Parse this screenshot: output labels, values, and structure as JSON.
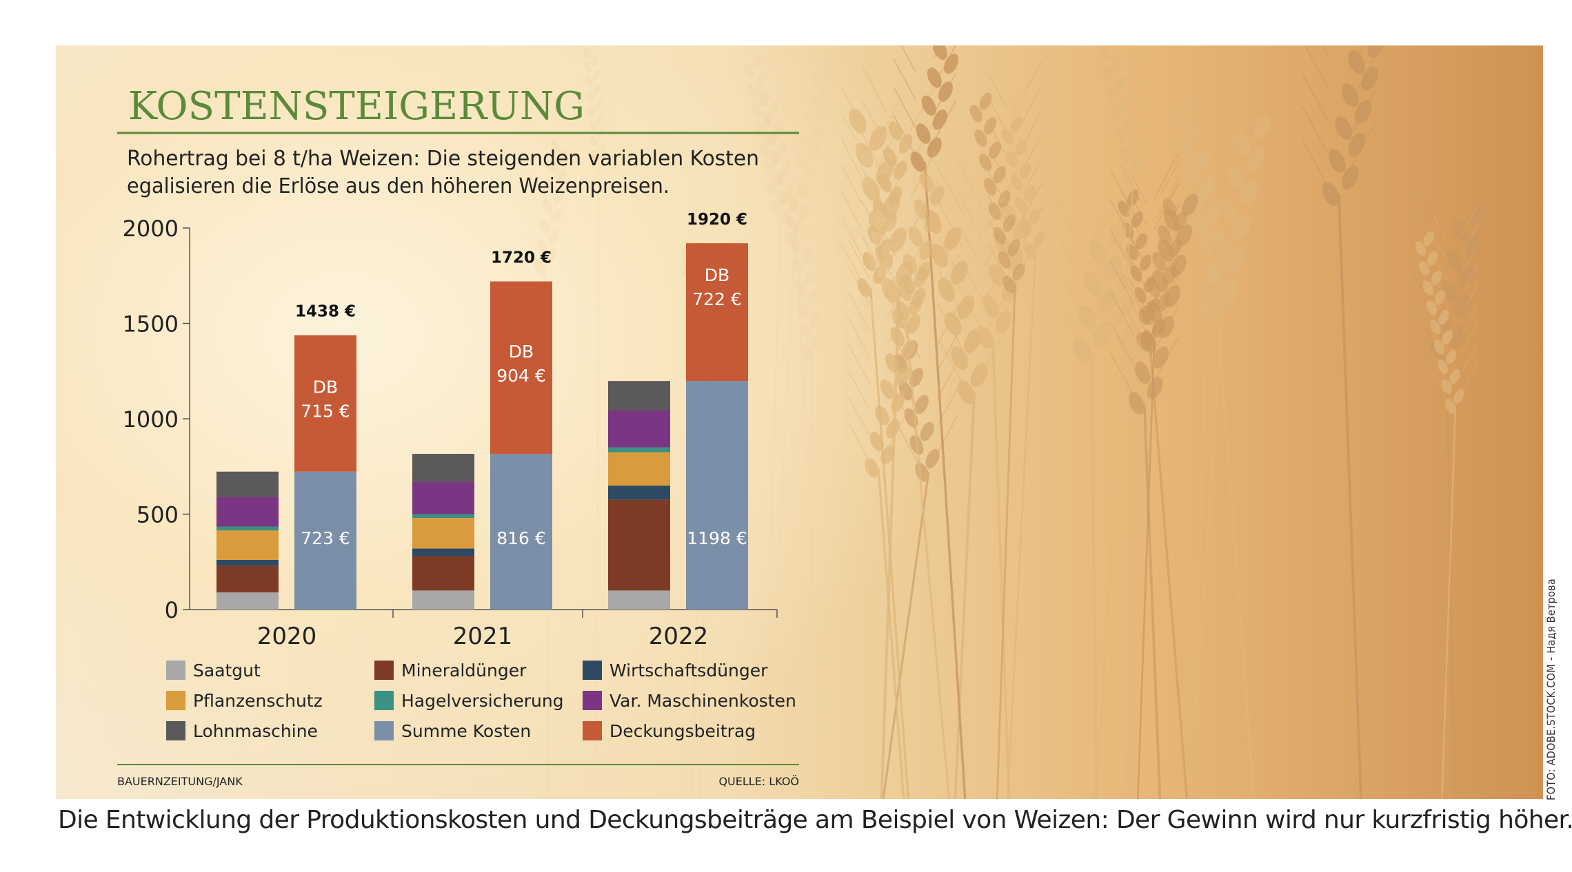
{
  "caption": "Die Entwicklung der Produktionskosten und Deckungsbeiträge am Beispiel von Weizen: Der Gewinn wird nur kurzfristig höher.",
  "photo_credit": "FOTO: ADOBE.STOCK.COM - Надя Ветрова",
  "footer": {
    "left": "BAUERNZEITUNG/JANK",
    "right": "QUELLE: LKOÖ"
  },
  "colors": {
    "title_green": "#5a8a3a",
    "saatgut": "#a8a8a8",
    "mineralduenger": "#7d3a24",
    "wirtschaftsduenger": "#2e4a63",
    "pflanzenschutz": "#d99b3c",
    "hagelversicherung": "#3a9184",
    "var_maschinenkosten": "#7a3682",
    "lohnmaschine": "#5a5a5a",
    "summe_kosten": "#7b8fa8",
    "deckungsbeitrag": "#c65a36"
  },
  "chart_data": {
    "type": "bar",
    "title": "KOSTENSTEIGERUNG",
    "subtitle": [
      "Rohertrag bei 8 t/ha Weizen: Die steigenden variablen Kosten",
      "egalisieren die Erlöse aus den höheren Weizenpreisen."
    ],
    "ylim": [
      0,
      2000
    ],
    "yticks": [
      0,
      500,
      1000,
      1500,
      2000
    ],
    "categories": [
      "2020",
      "2021",
      "2022"
    ],
    "stacked_costs": {
      "series": [
        {
          "name": "Saatgut",
          "color_key": "saatgut",
          "values": [
            90,
            100,
            100
          ]
        },
        {
          "name": "Mineraldünger",
          "color_key": "mineralduenger",
          "values": [
            140,
            180,
            475
          ]
        },
        {
          "name": "Wirtschaftsdünger",
          "color_key": "wirtschaftsduenger",
          "values": [
            30,
            40,
            75
          ]
        },
        {
          "name": "Pflanzenschutz",
          "color_key": "pflanzenschutz",
          "values": [
            155,
            160,
            175
          ]
        },
        {
          "name": "Hagelversicherung",
          "color_key": "hagelversicherung",
          "values": [
            20,
            20,
            25
          ]
        },
        {
          "name": "Var. Maschinenkosten",
          "color_key": "var_maschinenkosten",
          "values": [
            155,
            170,
            195
          ]
        },
        {
          "name": "Lohnmaschine",
          "color_key": "lohnmaschine",
          "values": [
            133,
            146,
            153
          ]
        }
      ]
    },
    "revenue_bars": [
      {
        "summe_kosten": 723,
        "summe_label": "723 €",
        "deckungsbeitrag": 715,
        "db_label": [
          "DB",
          "715 €"
        ],
        "total_label": "1438 €"
      },
      {
        "summe_kosten": 816,
        "summe_label": "816 €",
        "deckungsbeitrag": 904,
        "db_label": [
          "DB",
          "904 €"
        ],
        "total_label": "1720 €"
      },
      {
        "summe_kosten": 1198,
        "summe_label": "1198 €",
        "deckungsbeitrag": 722,
        "db_label": [
          "DB",
          "722 €"
        ],
        "total_label": "1920 €"
      }
    ],
    "legend": [
      {
        "name": "Saatgut",
        "color_key": "saatgut"
      },
      {
        "name": "Mineraldünger",
        "color_key": "mineralduenger"
      },
      {
        "name": "Wirtschaftsdünger",
        "color_key": "wirtschaftsduenger"
      },
      {
        "name": "Pflanzenschutz",
        "color_key": "pflanzenschutz"
      },
      {
        "name": "Hagelversicherung",
        "color_key": "hagelversicherung"
      },
      {
        "name": "Var. Maschinenkosten",
        "color_key": "var_maschinenkosten"
      },
      {
        "name": "Lohnmaschine",
        "color_key": "lohnmaschine"
      },
      {
        "name": "Summe Kosten",
        "color_key": "summe_kosten"
      },
      {
        "name": "Deckungsbeitrag",
        "color_key": "deckungsbeitrag"
      }
    ]
  }
}
